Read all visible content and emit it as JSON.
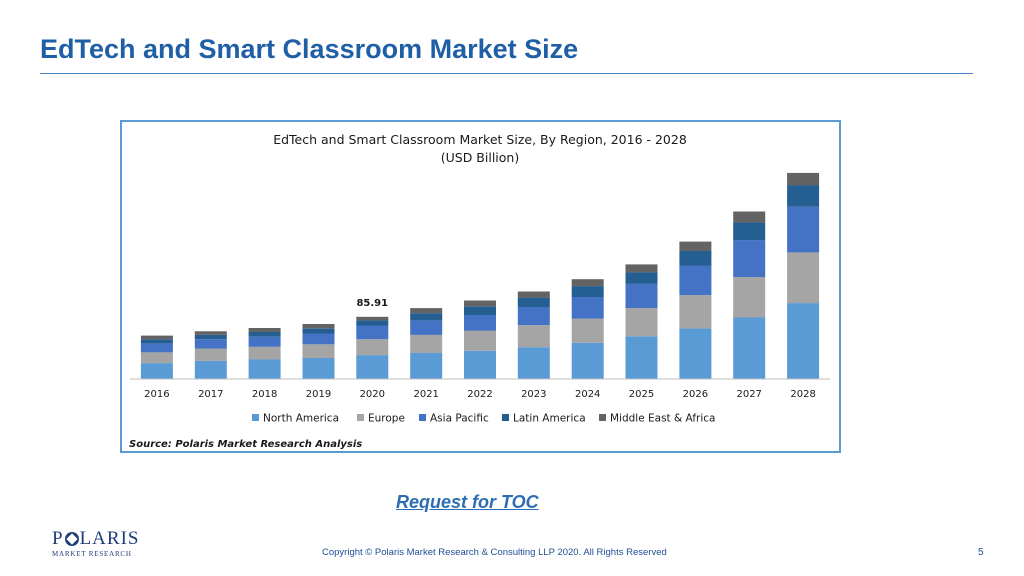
{
  "slide": {
    "title": "EdTech and Smart Classroom Market Size",
    "toc_link": "Request for TOC",
    "footer": "Copyright © Polaris Market Research & Consulting LLP 2020. All Rights Reserved",
    "page_number": "5"
  },
  "logo": {
    "word_left": "P",
    "word_right": "LARIS",
    "sub": "MARKET RESEARCH"
  },
  "chart_data": {
    "type": "bar",
    "stacked": true,
    "title": "EdTech and Smart Classroom Market Size, By Region, 2016 - 2028",
    "subtitle": "(USD Billion)",
    "source": "Source: Polaris  Market Research Analysis",
    "annotation": {
      "category": "2020",
      "text": "85.91"
    },
    "categories": [
      "2016",
      "2017",
      "2018",
      "2019",
      "2020",
      "2021",
      "2022",
      "2023",
      "2024",
      "2025",
      "2026",
      "2027",
      "2028"
    ],
    "series": [
      {
        "name": "North America",
        "color": "#5b9bd5",
        "values": [
          22,
          25,
          27,
          29,
          33,
          36,
          39,
          44,
          50,
          59,
          70,
          85,
          105
        ]
      },
      {
        "name": "Europe",
        "color": "#a5a5a5",
        "values": [
          15,
          17,
          17.5,
          19,
          22,
          25,
          28,
          30.5,
          33.5,
          39,
          46,
          56,
          70
        ]
      },
      {
        "name": "Asia Pacific",
        "color": "#4472c4",
        "values": [
          12,
          13,
          14,
          15,
          19,
          20,
          21.5,
          25,
          30,
          33.5,
          41,
          51,
          63
        ]
      },
      {
        "name": "Latin America",
        "color": "#255e91",
        "values": [
          6,
          6,
          6.5,
          7,
          7,
          10,
          12,
          13,
          15,
          16,
          20,
          24.5,
          30
        ]
      },
      {
        "name": "Middle East & Africa",
        "color": "#636363",
        "values": [
          5,
          5,
          5.5,
          6,
          5,
          7,
          8,
          8.5,
          9.5,
          11,
          13,
          15,
          17
        ]
      }
    ],
    "ylim": [
      0,
      300
    ],
    "grid": false,
    "legend_position": "bottom"
  }
}
